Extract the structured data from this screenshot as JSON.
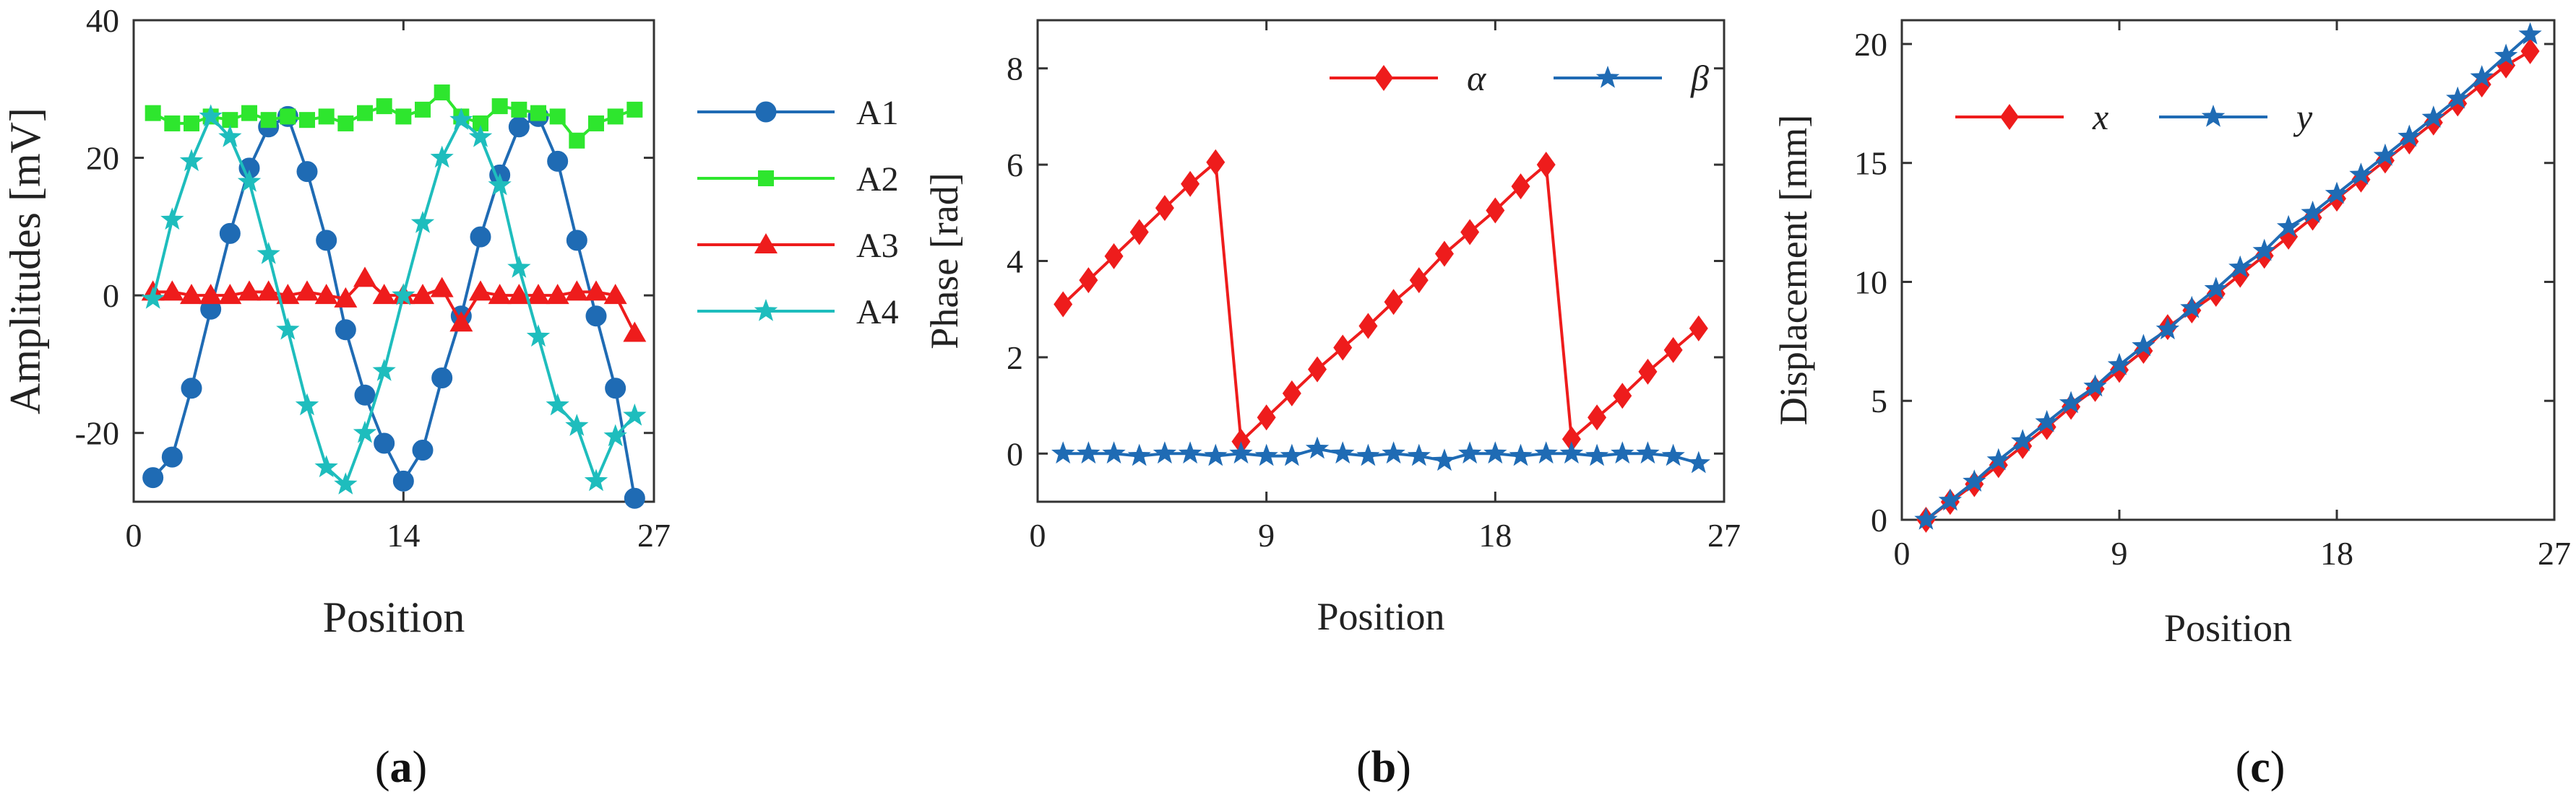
{
  "chart_data": [
    {
      "type": "line",
      "caption": "a",
      "xlabel": "Position",
      "ylabel": "Amplitudes [mV]",
      "xlim": [
        0,
        27
      ],
      "ylim": [
        -30,
        40
      ],
      "xticks": [
        "0",
        "14",
        "27"
      ],
      "yticks": [
        "40",
        "20",
        "0",
        "-20"
      ],
      "legend_position": "right-outside",
      "x": [
        1,
        2,
        3,
        4,
        5,
        6,
        7,
        8,
        9,
        10,
        11,
        12,
        13,
        14,
        15,
        16,
        17,
        18,
        19,
        20,
        21,
        22,
        23,
        24,
        25,
        26
      ],
      "series": [
        {
          "name": "A1",
          "color": "#1f6bb4",
          "marker": "circle",
          "values": [
            -26.5,
            -23.5,
            -13.5,
            -2,
            9,
            18.5,
            24.5,
            26,
            18,
            8,
            -5,
            -14.5,
            -21.5,
            -27,
            -22.5,
            -12,
            -3,
            8.5,
            17.5,
            24.5,
            26,
            19.5,
            8,
            -3,
            -13.5,
            -29.5
          ]
        },
        {
          "name": "A2",
          "color": "#2ee62e",
          "marker": "square",
          "values": [
            26.5,
            25,
            25,
            26,
            25.5,
            26.5,
            25.5,
            26,
            25.5,
            26,
            25,
            26.5,
            27.5,
            26,
            27,
            29.5,
            26,
            25,
            27.5,
            27,
            26.5,
            26,
            22.5,
            25,
            26,
            27
          ]
        },
        {
          "name": "A3",
          "color": "#ee1c1c",
          "marker": "triangle",
          "values": [
            0.5,
            0.5,
            0,
            0,
            0,
            0.5,
            0.5,
            0,
            0.5,
            0,
            -0.5,
            2.5,
            0,
            0,
            0,
            1,
            -4,
            0.5,
            0,
            0,
            0,
            0,
            0.5,
            0.5,
            0,
            -5.5
          ]
        },
        {
          "name": "A4",
          "color": "#1ebdbd",
          "marker": "star",
          "values": [
            -0.5,
            11,
            19.5,
            26,
            23,
            16.5,
            6,
            -5,
            -16,
            -25,
            -27.5,
            -20,
            -11,
            0,
            10.5,
            20,
            25.5,
            23,
            16,
            4,
            -6,
            -16,
            -19,
            -27,
            -20.5,
            -17.5
          ]
        }
      ]
    },
    {
      "type": "line",
      "caption": "b",
      "xlabel": "Position",
      "ylabel": "Phase [rad]",
      "xlim": [
        0,
        27
      ],
      "ylim": [
        -1,
        9
      ],
      "xticks": [
        "0",
        "9",
        "18",
        "27"
      ],
      "yticks": [
        "8",
        "6",
        "4",
        "2",
        "0"
      ],
      "legend_position": "top-right",
      "x": [
        1,
        2,
        3,
        4,
        5,
        6,
        7,
        8,
        9,
        10,
        11,
        12,
        13,
        14,
        15,
        16,
        17,
        18,
        19,
        20,
        21,
        22,
        23,
        24,
        25,
        26
      ],
      "series": [
        {
          "name": "α",
          "color": "#ee1c1c",
          "marker": "diamond",
          "values": [
            3.1,
            3.6,
            4.1,
            4.6,
            5.1,
            5.6,
            6.05,
            0.25,
            0.75,
            1.25,
            1.75,
            2.2,
            2.65,
            3.15,
            3.6,
            4.15,
            4.6,
            5.05,
            5.55,
            6.0,
            0.3,
            0.75,
            1.2,
            1.7,
            2.15,
            2.6
          ]
        },
        {
          "name": "β",
          "color": "#1f6bb4",
          "marker": "star",
          "values": [
            0,
            0,
            0,
            -0.05,
            0,
            0,
            -0.05,
            0,
            -0.05,
            -0.05,
            0.1,
            0,
            -0.05,
            0,
            -0.05,
            -0.15,
            0,
            0,
            -0.05,
            0,
            0,
            -0.05,
            0,
            0,
            -0.05,
            -0.2
          ]
        }
      ]
    },
    {
      "type": "line",
      "caption": "c",
      "xlabel": "Position",
      "ylabel": "Displacement [mm]",
      "xlim": [
        0,
        27
      ],
      "ylim": [
        0,
        21
      ],
      "xticks": [
        "0",
        "9",
        "18",
        "27"
      ],
      "yticks": [
        "20",
        "15",
        "10",
        "5",
        "0"
      ],
      "legend_position": "top-left",
      "x": [
        1,
        2,
        3,
        4,
        5,
        6,
        7,
        8,
        9,
        10,
        11,
        12,
        13,
        14,
        15,
        16,
        17,
        18,
        19,
        20,
        21,
        22,
        23,
        24,
        25,
        26
      ],
      "series": [
        {
          "name": "x",
          "color": "#ee1c1c",
          "marker": "diamond",
          "values": [
            0,
            0.75,
            1.5,
            2.3,
            3.1,
            3.9,
            4.75,
            5.5,
            6.3,
            7.1,
            8.1,
            8.8,
            9.5,
            10.3,
            11.1,
            11.9,
            12.7,
            13.5,
            14.3,
            15.1,
            15.9,
            16.7,
            17.5,
            18.3,
            19.1,
            19.7
          ]
        },
        {
          "name": "y",
          "color": "#1f6bb4",
          "marker": "star",
          "values": [
            0,
            0.8,
            1.6,
            2.5,
            3.3,
            4.1,
            4.9,
            5.6,
            6.5,
            7.3,
            8.0,
            8.9,
            9.7,
            10.6,
            11.3,
            12.3,
            12.9,
            13.7,
            14.5,
            15.3,
            16.1,
            16.9,
            17.7,
            18.6,
            19.5,
            20.4
          ]
        }
      ]
    }
  ]
}
